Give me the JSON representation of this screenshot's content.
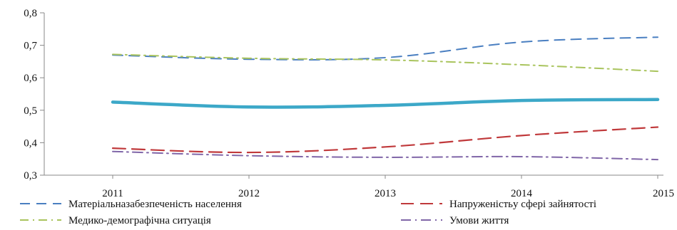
{
  "chart_data": {
    "type": "line",
    "categories": [
      "2011",
      "2012",
      "2013",
      "2014",
      "2015"
    ],
    "ylim": [
      0.3,
      0.8
    ],
    "y_ticks": [
      "0,8",
      "0,7",
      "0,6",
      "0,5",
      "0,4",
      "0,3"
    ],
    "grid": false,
    "legend_placement": "bottom",
    "series": [
      {
        "name": "Матеріальназабезпеченість населення",
        "values": [
          0.67,
          0.657,
          0.662,
          0.71,
          0.725
        ],
        "color": "#4a7fc1",
        "dash": "14 9",
        "width": 2
      },
      {
        "name": "Напруженістьу сфері зайнятості",
        "values": [
          0.383,
          0.37,
          0.387,
          0.422,
          0.448
        ],
        "color": "#c0393b",
        "dash": "18 9",
        "width": 2.2
      },
      {
        "name": "Медико-демографічна ситуація",
        "values": [
          0.672,
          0.66,
          0.655,
          0.64,
          0.62
        ],
        "color": "#a9c45d",
        "dash": "12 6 2 6",
        "width": 2
      },
      {
        "name": "Умови життя",
        "values": [
          0.373,
          0.36,
          0.355,
          0.357,
          0.348
        ],
        "color": "#8066a8",
        "dash": "14 6 2 6",
        "width": 2
      },
      {
        "name": "",
        "values": [
          0.525,
          0.51,
          0.515,
          0.53,
          0.533
        ],
        "color": "#3ca8c8",
        "dash": "",
        "width": 4.5
      }
    ]
  }
}
